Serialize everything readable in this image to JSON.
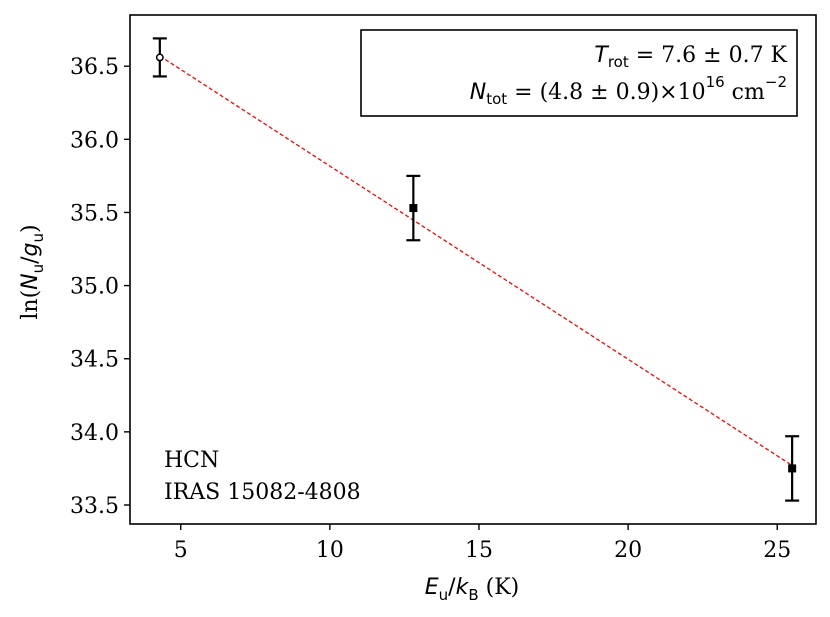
{
  "chart_data": {
    "type": "scatter",
    "xlabel": {
      "main": "E",
      "main_sub": "u",
      "slash": "/",
      "den": "k",
      "den_sub": "B",
      "units": " (K)"
    },
    "ylabel": {
      "prefix": "ln(",
      "num": "N",
      "num_sub": "u",
      "slash": "/",
      "den": "g",
      "den_sub": "u",
      "suffix": ")"
    },
    "xlim": [
      3.3,
      26.3
    ],
    "ylim": [
      33.37,
      36.85
    ],
    "xticks": [
      5,
      10,
      15,
      20,
      25
    ],
    "xtick_labels": [
      "5",
      "10",
      "15",
      "20",
      "25"
    ],
    "yticks": [
      33.5,
      34.0,
      34.5,
      35.0,
      35.5,
      36.0,
      36.5
    ],
    "ytick_labels": [
      "33.5",
      "34.0",
      "34.5",
      "35.0",
      "35.5",
      "36.0",
      "36.5"
    ],
    "grid": false,
    "points": [
      {
        "x": 4.3,
        "y": 36.56,
        "err": 0.13,
        "marker": "open-circle"
      },
      {
        "x": 12.8,
        "y": 35.53,
        "err": 0.22,
        "marker": "filled-square"
      },
      {
        "x": 25.5,
        "y": 33.75,
        "err": 0.22,
        "marker": "filled-square"
      }
    ],
    "fit_line": {
      "x": [
        4.3,
        25.5
      ],
      "y": [
        36.57,
        33.77
      ],
      "color": "#ff0000",
      "style": "dashed"
    },
    "box": {
      "line1": {
        "sym": "T",
        "sub": "rot",
        "rest": " = 7.6 ± 0.7 K"
      },
      "line2": {
        "sym": "N",
        "sub": "tot",
        "rest": " = (4.8 ± 0.9)×10",
        "sup": "16",
        "unit": " cm",
        "unit_sup": "−2"
      }
    },
    "annotation": [
      "HCN",
      "IRAS 15082-4808"
    ]
  }
}
